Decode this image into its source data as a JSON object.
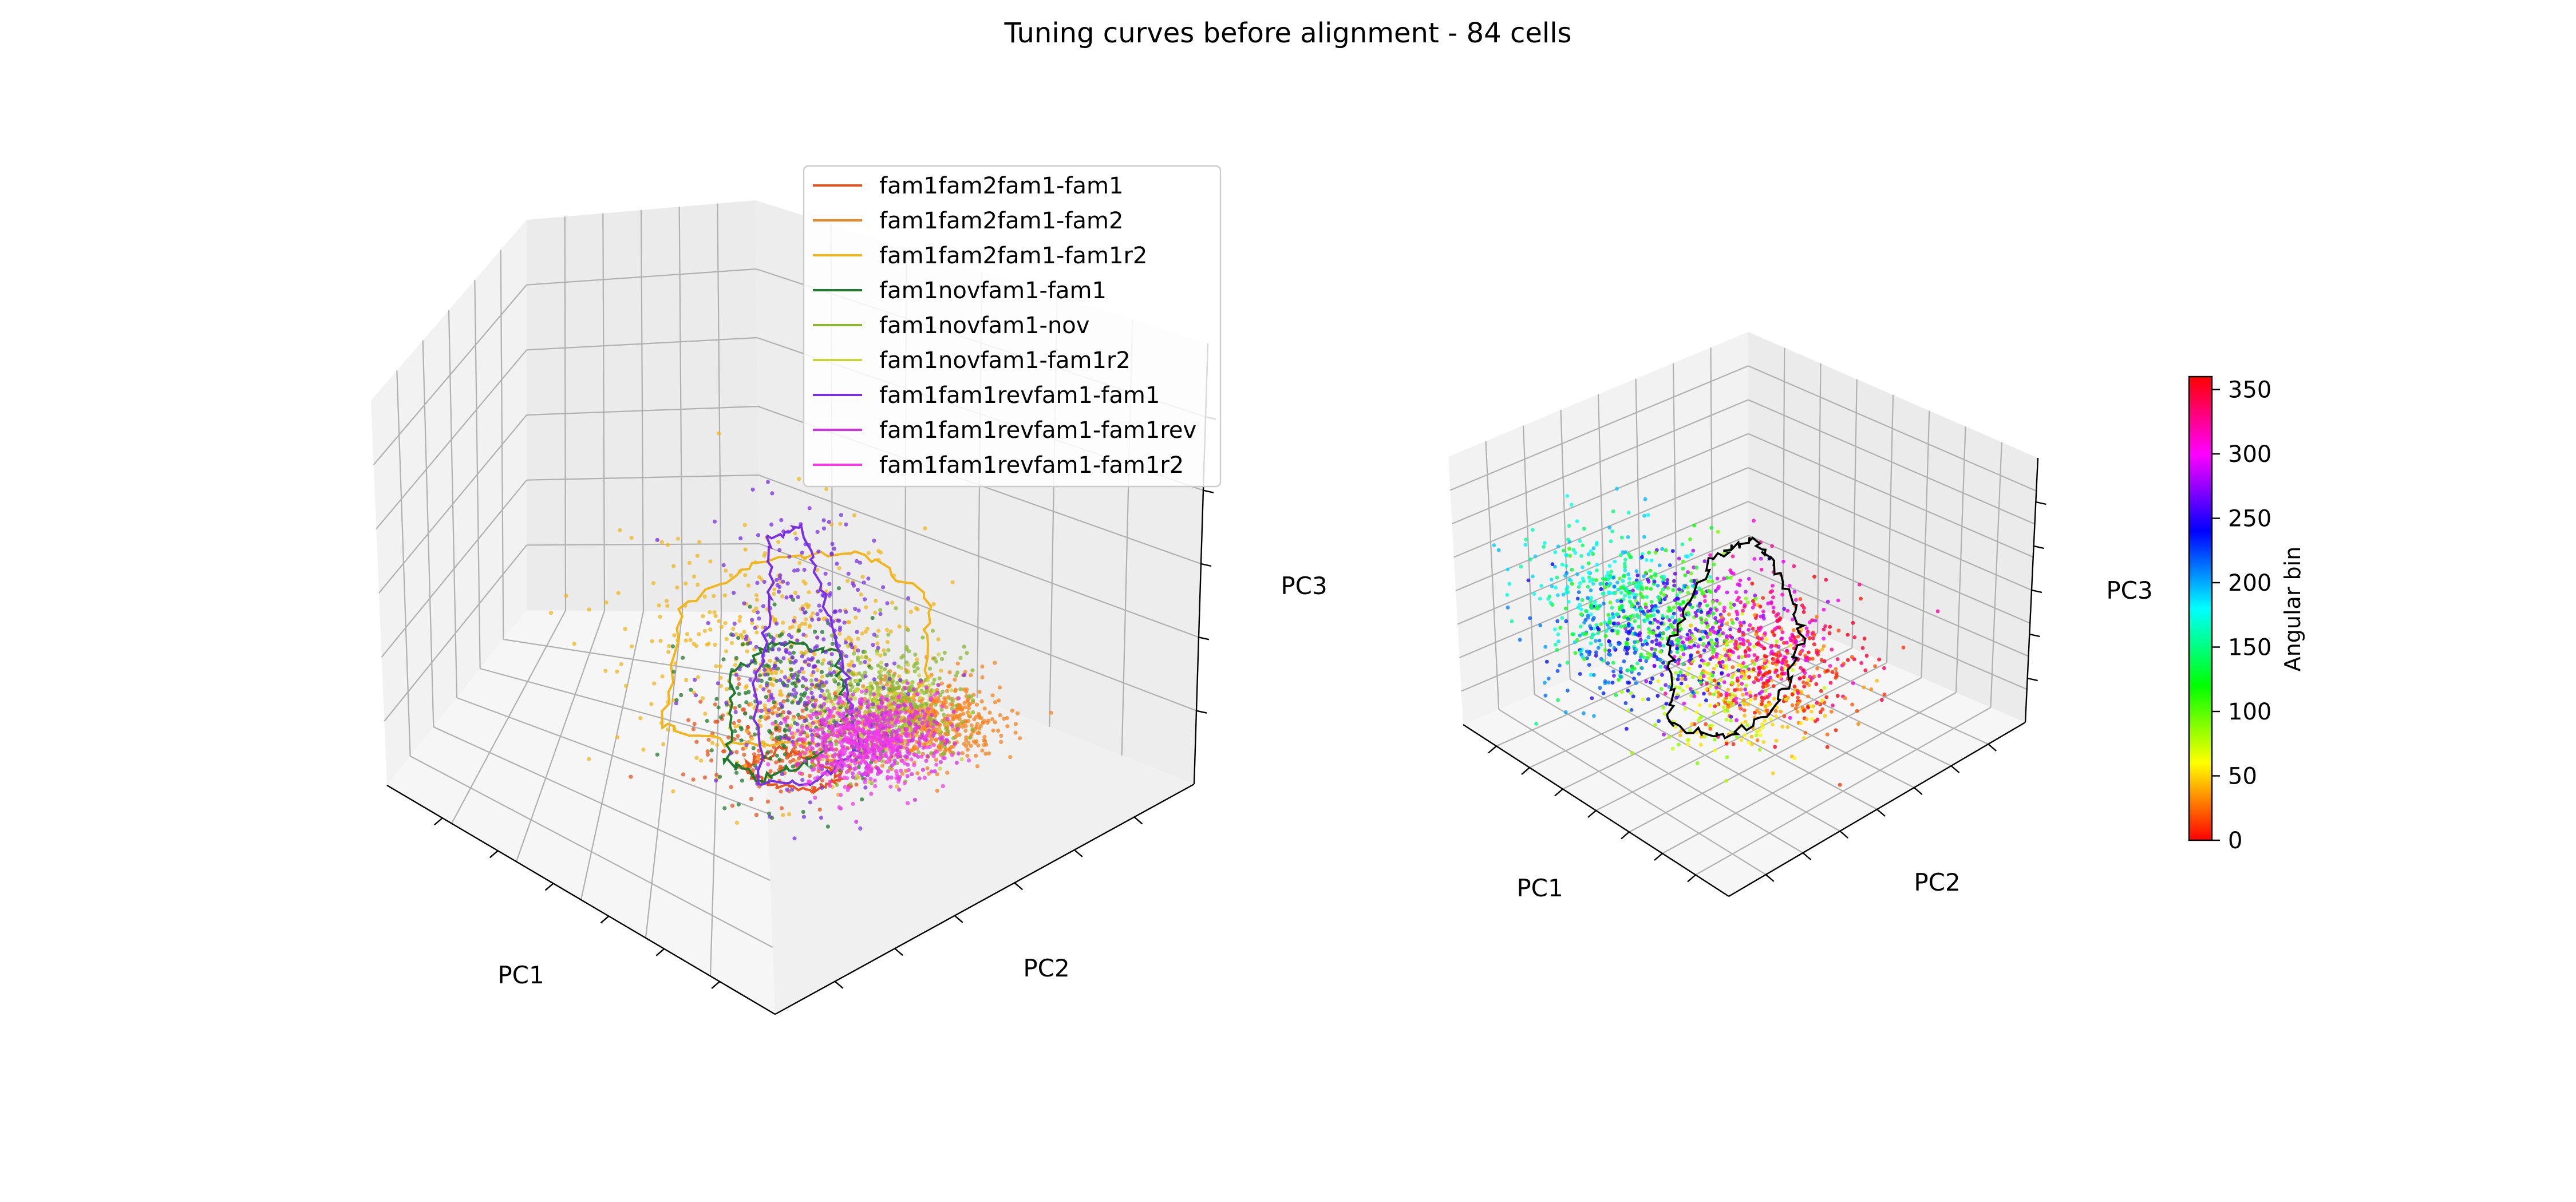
{
  "figure": {
    "title": "Tuning curves before alignment - 84 cells"
  },
  "chart_data": [
    {
      "type": "scatter",
      "projection": "3d",
      "xlabel": "PC1",
      "ylabel": "PC2",
      "zlabel": "PC3",
      "grid": true,
      "legend_placement": "top-center",
      "series": [
        {
          "name": "fam1fam2fam1-fam1",
          "color": "#e8541c",
          "points_est": 220,
          "loop": true
        },
        {
          "name": "fam1fam2fam1-fam2",
          "color": "#f5831f",
          "points_est": 520,
          "loop": false
        },
        {
          "name": "fam1fam2fam1-fam1r2",
          "color": "#f2b51a",
          "points_est": 420,
          "loop": true
        },
        {
          "name": "fam1novfam1-fam1",
          "color": "#1f7a2e",
          "points_est": 200,
          "loop": true
        },
        {
          "name": "fam1novfam1-nov",
          "color": "#8bb832",
          "points_est": 360,
          "loop": false
        },
        {
          "name": "fam1novfam1-fam1r2",
          "color": "#c6d63a",
          "points_est": 200,
          "loop": false
        },
        {
          "name": "fam1fam1revfam1-fam1",
          "color": "#7a2ee6",
          "points_est": 300,
          "loop": true
        },
        {
          "name": "fam1fam1revfam1-fam1rev",
          "color": "#d62ee6",
          "points_est": 360,
          "loop": false
        },
        {
          "name": "fam1fam1revfam1-fam1r2",
          "color": "#f23ce8",
          "points_est": 360,
          "loop": false
        }
      ]
    },
    {
      "type": "scatter",
      "projection": "3d",
      "xlabel": "PC1",
      "ylabel": "PC2",
      "zlabel": "PC3",
      "grid": true,
      "color_by": "angular bin",
      "colormap": "hsv",
      "loop_color": "#000000",
      "colorbar": {
        "label": "Angular bin",
        "range": [
          0,
          360
        ],
        "ticks": [
          "0",
          "50",
          "100",
          "150",
          "200",
          "250",
          "300",
          "350"
        ]
      },
      "points_est": 1600
    }
  ]
}
